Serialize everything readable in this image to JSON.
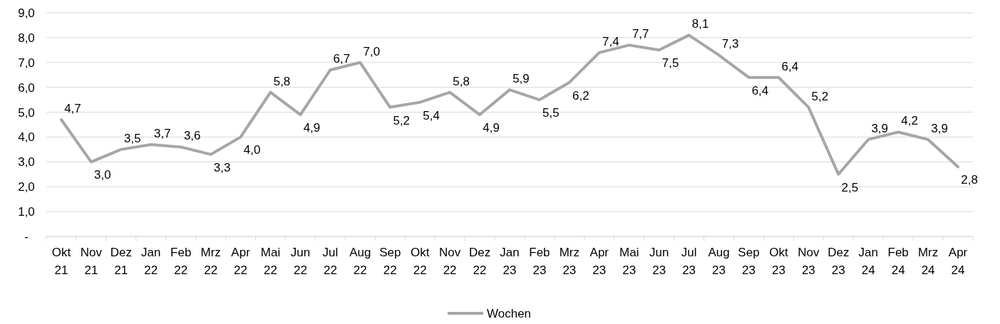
{
  "chart_data": {
    "type": "line",
    "categories": [
      "Okt 21",
      "Nov 21",
      "Dez 21",
      "Jan 22",
      "Feb 22",
      "Mrz 22",
      "Apr 22",
      "Mai 22",
      "Jun 22",
      "Jul 22",
      "Aug 22",
      "Sep 22",
      "Okt 22",
      "Nov 22",
      "Dez 22",
      "Jan 23",
      "Feb 23",
      "Mrz 23",
      "Apr 23",
      "Mai 23",
      "Jun 23",
      "Jul 23",
      "Aug 23",
      "Sep 23",
      "Okt 23",
      "Nov 23",
      "Dez 23",
      "Jan 24",
      "Feb 24",
      "Mrz 24",
      "Apr 24"
    ],
    "series": [
      {
        "name": "Wochen",
        "color": "#a6a6a6",
        "values": [
          4.7,
          3.0,
          3.5,
          3.7,
          3.6,
          3.3,
          4.0,
          5.8,
          4.9,
          6.7,
          7.0,
          5.2,
          5.4,
          5.8,
          4.9,
          5.9,
          5.5,
          6.2,
          7.4,
          7.7,
          7.5,
          8.1,
          7.3,
          6.4,
          6.4,
          5.2,
          2.5,
          3.9,
          4.2,
          3.9,
          2.8
        ],
        "value_labels": [
          "4,7",
          "3,0",
          "3,5",
          "3,7",
          "3,6",
          "3,3",
          "4,0",
          "5,8",
          "4,9",
          "6,7",
          "7,0",
          "5,2",
          "5,4",
          "5,8",
          "4,9",
          "5,9",
          "5,5",
          "6,2",
          "7,4",
          "7,7",
          "7,5",
          "8,1",
          "7,3",
          "6,4",
          "6,4",
          "5,2",
          "2,5",
          "3,9",
          "4,2",
          "3,9",
          "2,8"
        ]
      }
    ],
    "ylim": [
      0,
      9
    ],
    "yticks": [
      {
        "value": 0,
        "label": "-"
      },
      {
        "value": 1,
        "label": "1,0"
      },
      {
        "value": 2,
        "label": "2,0"
      },
      {
        "value": 3,
        "label": "3,0"
      },
      {
        "value": 4,
        "label": "4,0"
      },
      {
        "value": 5,
        "label": "5,0"
      },
      {
        "value": 6,
        "label": "6,0"
      },
      {
        "value": 7,
        "label": "7,0"
      },
      {
        "value": 8,
        "label": "8,0"
      },
      {
        "value": 9,
        "label": "9,0"
      }
    ],
    "grid": "y",
    "legend": "bottom",
    "marker": "none",
    "line_style": "solid"
  }
}
